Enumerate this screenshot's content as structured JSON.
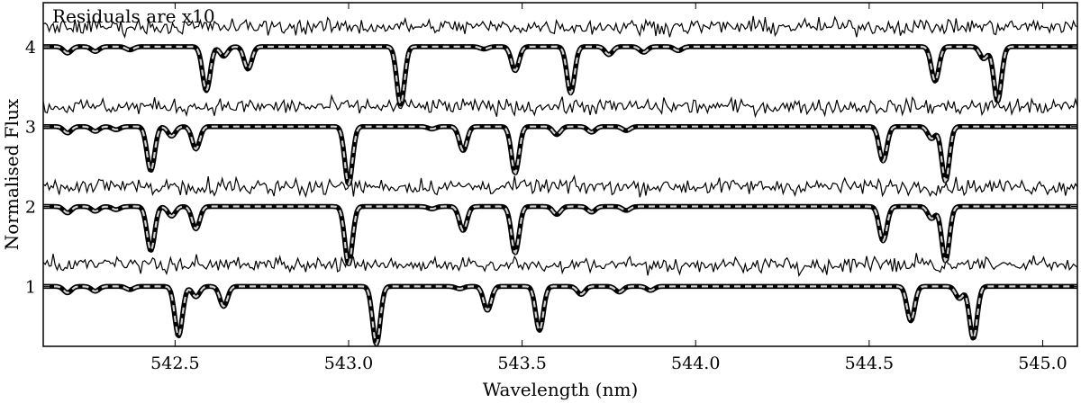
{
  "chart_data": {
    "type": "line",
    "title": "",
    "xlabel": "Wavelength (nm)",
    "ylabel": "Normalised Flux",
    "annotation": "Residuals are x10",
    "xlim": [
      542.12,
      545.1
    ],
    "ylim": [
      0.25,
      4.55
    ],
    "xticks": [
      542.5,
      543.0,
      543.5,
      544.0,
      544.5,
      545.0
    ],
    "xtick_labels": [
      "542.5",
      "543.0",
      "543.5",
      "544.0",
      "544.5",
      "545.0"
    ],
    "yticks": [
      1,
      2,
      3,
      4
    ],
    "ytick_labels": [
      "1",
      "2",
      "3",
      "4"
    ],
    "grid": false,
    "residual_scale": 10,
    "series": [
      {
        "offset": 1,
        "residual_level": 1.27,
        "lines": [
          {
            "x": 542.19,
            "depth": 0.08
          },
          {
            "x": 542.27,
            "depth": 0.06
          },
          {
            "x": 542.37,
            "depth": 0.04
          },
          {
            "x": 542.51,
            "depth": 0.62
          },
          {
            "x": 542.56,
            "depth": 0.13
          },
          {
            "x": 542.64,
            "depth": 0.25
          },
          {
            "x": 543.08,
            "depth": 0.72
          },
          {
            "x": 543.32,
            "depth": 0.03
          },
          {
            "x": 543.4,
            "depth": 0.3
          },
          {
            "x": 543.55,
            "depth": 0.55
          },
          {
            "x": 543.67,
            "depth": 0.1
          },
          {
            "x": 543.78,
            "depth": 0.07
          },
          {
            "x": 543.87,
            "depth": 0.05
          },
          {
            "x": 544.62,
            "depth": 0.43
          },
          {
            "x": 544.76,
            "depth": 0.15
          },
          {
            "x": 544.8,
            "depth": 0.65
          }
        ]
      },
      {
        "offset": 2,
        "residual_level": 2.25,
        "lines": [
          {
            "x": 542.19,
            "depth": 0.08
          },
          {
            "x": 542.27,
            "depth": 0.06
          },
          {
            "x": 542.33,
            "depth": 0.04
          },
          {
            "x": 542.43,
            "depth": 0.55
          },
          {
            "x": 542.49,
            "depth": 0.12
          },
          {
            "x": 542.56,
            "depth": 0.28
          },
          {
            "x": 543.0,
            "depth": 0.72
          },
          {
            "x": 543.24,
            "depth": 0.03
          },
          {
            "x": 543.33,
            "depth": 0.3
          },
          {
            "x": 543.48,
            "depth": 0.58
          },
          {
            "x": 543.6,
            "depth": 0.1
          },
          {
            "x": 543.7,
            "depth": 0.07
          },
          {
            "x": 543.8,
            "depth": 0.05
          },
          {
            "x": 544.54,
            "depth": 0.43
          },
          {
            "x": 544.68,
            "depth": 0.15
          },
          {
            "x": 544.72,
            "depth": 0.68
          }
        ]
      },
      {
        "offset": 3,
        "residual_level": 3.25,
        "lines": [
          {
            "x": 542.19,
            "depth": 0.08
          },
          {
            "x": 542.27,
            "depth": 0.06
          },
          {
            "x": 542.33,
            "depth": 0.04
          },
          {
            "x": 542.43,
            "depth": 0.55
          },
          {
            "x": 542.49,
            "depth": 0.12
          },
          {
            "x": 542.56,
            "depth": 0.28
          },
          {
            "x": 543.0,
            "depth": 0.72
          },
          {
            "x": 543.24,
            "depth": 0.03
          },
          {
            "x": 543.33,
            "depth": 0.3
          },
          {
            "x": 543.48,
            "depth": 0.58
          },
          {
            "x": 543.6,
            "depth": 0.1
          },
          {
            "x": 543.7,
            "depth": 0.07
          },
          {
            "x": 543.8,
            "depth": 0.05
          },
          {
            "x": 544.54,
            "depth": 0.43
          },
          {
            "x": 544.68,
            "depth": 0.15
          },
          {
            "x": 544.72,
            "depth": 0.68
          }
        ]
      },
      {
        "offset": 4,
        "residual_level": 4.25,
        "lines": [
          {
            "x": 542.19,
            "depth": 0.08
          },
          {
            "x": 542.27,
            "depth": 0.06
          },
          {
            "x": 542.37,
            "depth": 0.04
          },
          {
            "x": 542.59,
            "depth": 0.55
          },
          {
            "x": 542.64,
            "depth": 0.12
          },
          {
            "x": 542.71,
            "depth": 0.28
          },
          {
            "x": 543.15,
            "depth": 0.72
          },
          {
            "x": 543.39,
            "depth": 0.03
          },
          {
            "x": 543.48,
            "depth": 0.3
          },
          {
            "x": 543.64,
            "depth": 0.58
          },
          {
            "x": 543.75,
            "depth": 0.1
          },
          {
            "x": 543.85,
            "depth": 0.07
          },
          {
            "x": 543.95,
            "depth": 0.05
          },
          {
            "x": 544.69,
            "depth": 0.43
          },
          {
            "x": 544.83,
            "depth": 0.15
          },
          {
            "x": 544.87,
            "depth": 0.68
          }
        ]
      }
    ]
  }
}
